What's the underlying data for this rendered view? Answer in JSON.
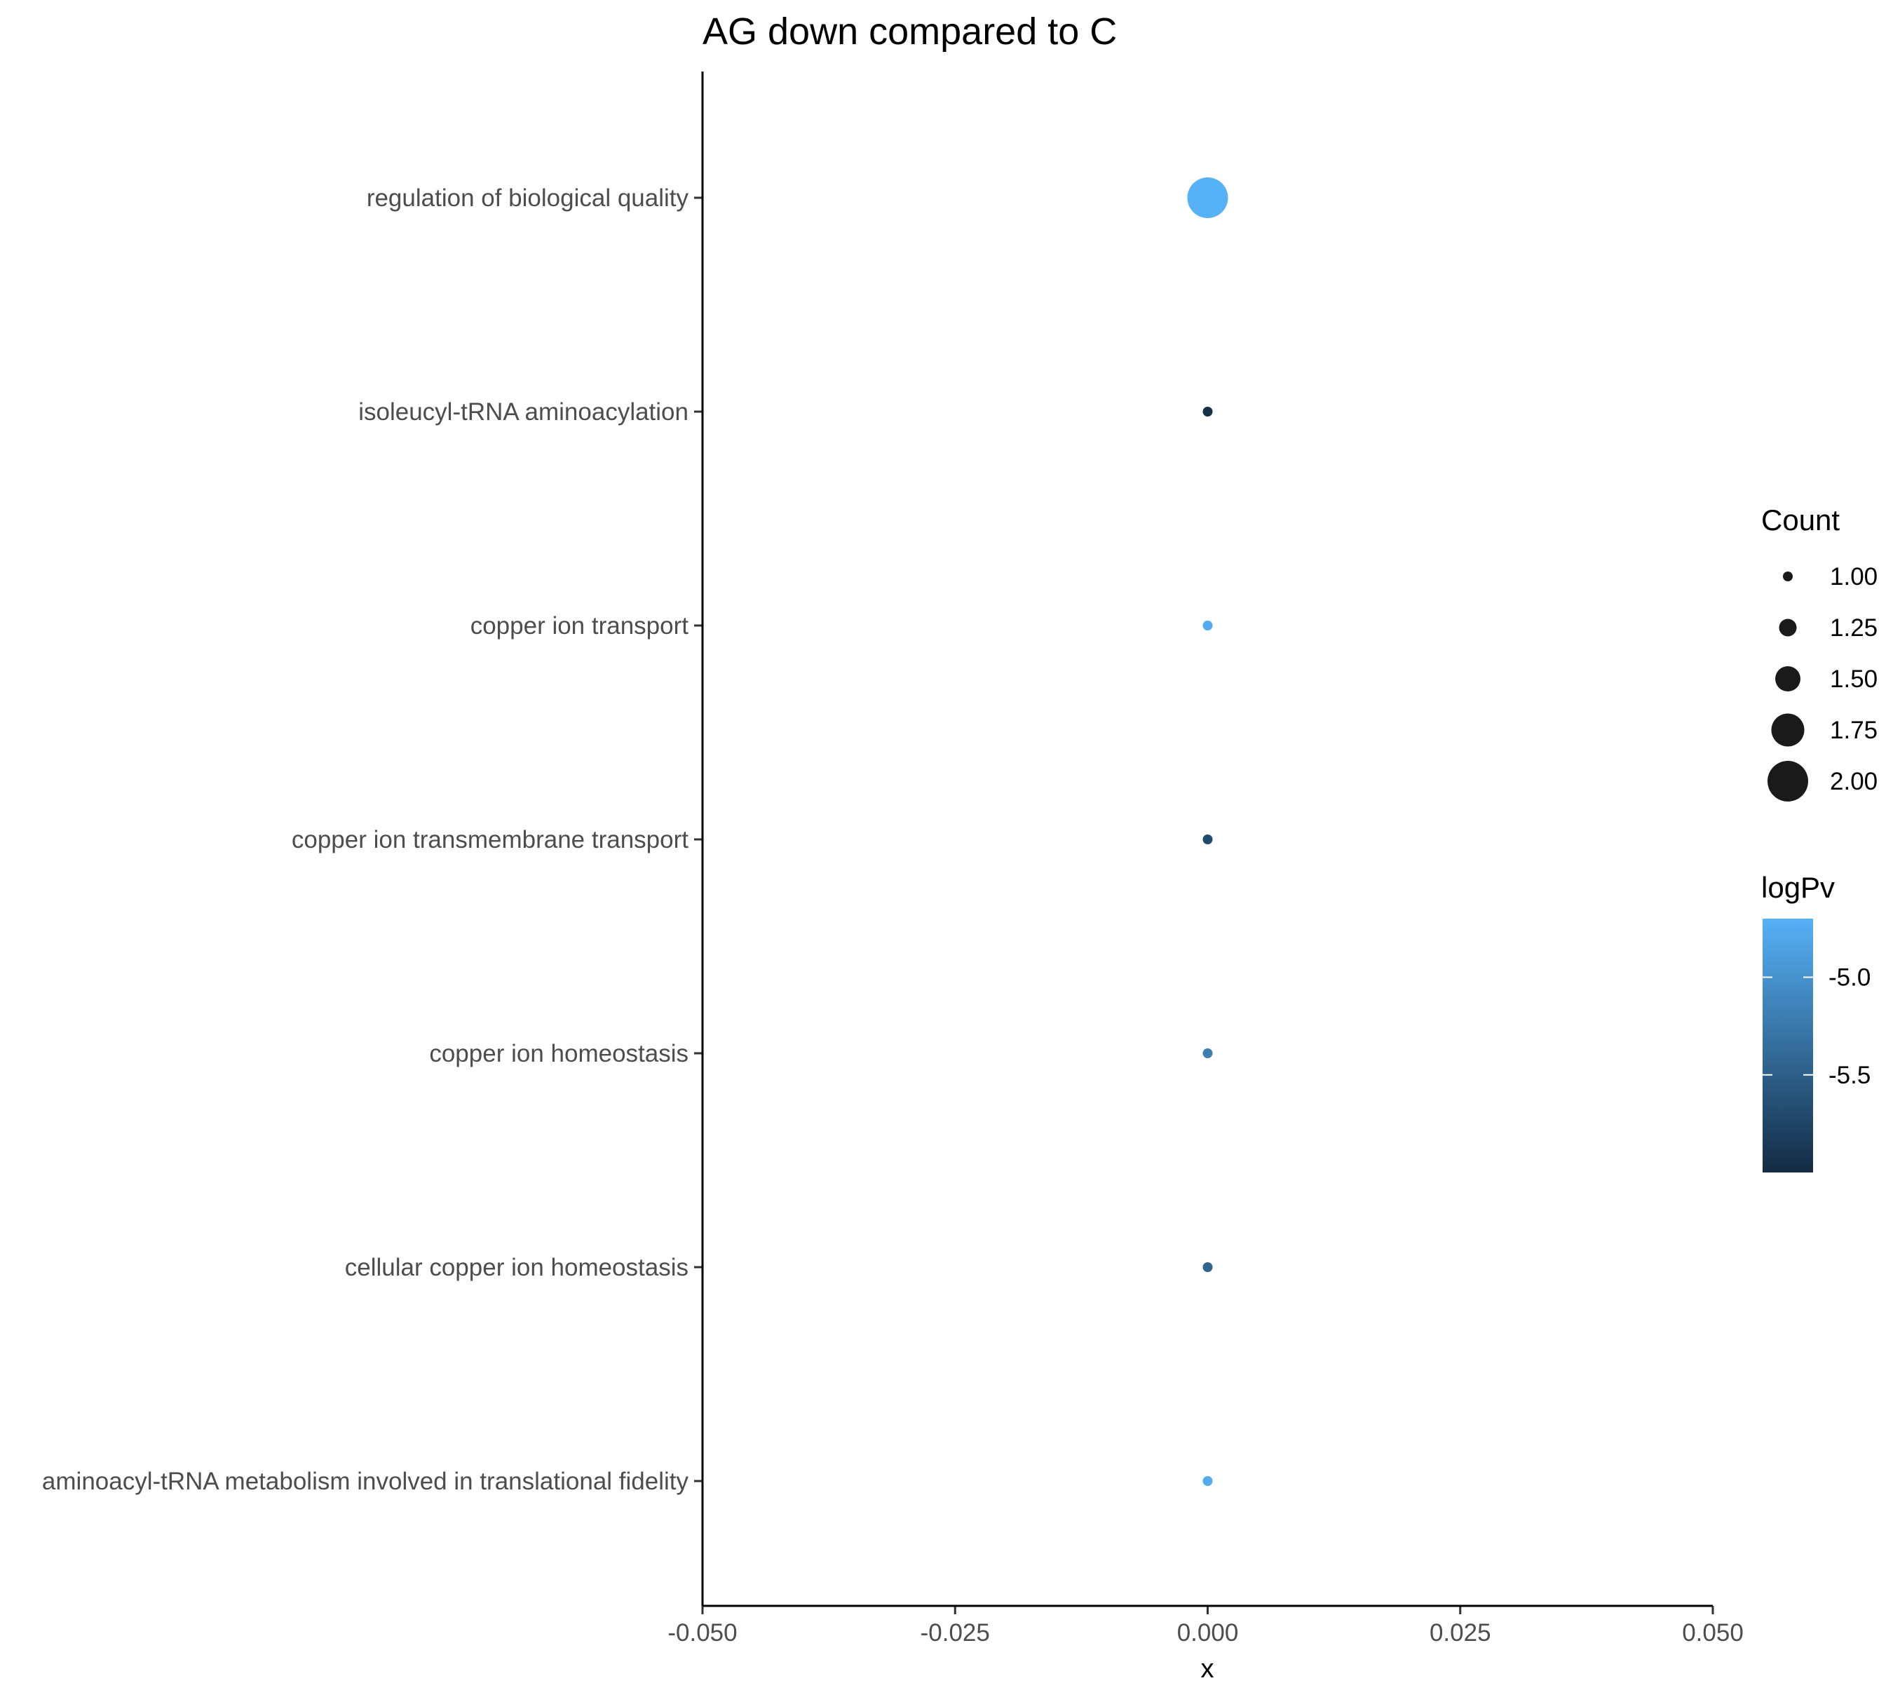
{
  "chart_data": {
    "type": "scatter",
    "title": "AG down compared to C",
    "xlabel": "x",
    "ylabel": "",
    "xlim": [
      -0.05,
      0.05
    ],
    "x_ticks": [
      "-0.050",
      "-0.025",
      "0.000",
      "0.025",
      "0.050"
    ],
    "x_tick_values": [
      -0.05,
      -0.025,
      0,
      0.025,
      0.05
    ],
    "categories": [
      "regulation of biological quality",
      "isoleucyl-tRNA aminoacylation",
      "copper ion transport",
      "copper ion transmembrane transport",
      "copper ion homeostasis",
      "cellular copper ion homeostasis",
      "aminoacyl-tRNA metabolism involved in translational fidelity"
    ],
    "points": [
      {
        "term": "regulation of biological quality",
        "x": 0,
        "count": 2,
        "logPv": -4.7
      },
      {
        "term": "isoleucyl-tRNA aminoacylation",
        "x": 0,
        "count": 1,
        "logPv": -5.95
      },
      {
        "term": "copper ion transport",
        "x": 0,
        "count": 1,
        "logPv": -4.75
      },
      {
        "term": "copper ion transmembrane transport",
        "x": 0,
        "count": 1,
        "logPv": -5.7
      },
      {
        "term": "copper ion homeostasis",
        "x": 0,
        "count": 1,
        "logPv": -5.2
      },
      {
        "term": "cellular copper ion homeostasis",
        "x": 0,
        "count": 1,
        "logPv": -5.45
      },
      {
        "term": "aminoacyl-tRNA metabolism involved in translational fidelity",
        "x": 0,
        "count": 1,
        "logPv": -4.75
      }
    ],
    "size_legend": {
      "title": "Count",
      "labels": [
        "1.00",
        "1.25",
        "1.50",
        "1.75",
        "2.00"
      ],
      "values": [
        1.0,
        1.25,
        1.5,
        1.75,
        2.0
      ]
    },
    "color_legend": {
      "title": "logPv",
      "labels": [
        "-5.0",
        "-5.5"
      ],
      "values": [
        -5.0,
        -5.5
      ],
      "range": [
        -6.0,
        -4.7
      ],
      "low_color": "#132b43",
      "high_color": "#56b1f7"
    },
    "grid": false,
    "legend_position": "right"
  }
}
